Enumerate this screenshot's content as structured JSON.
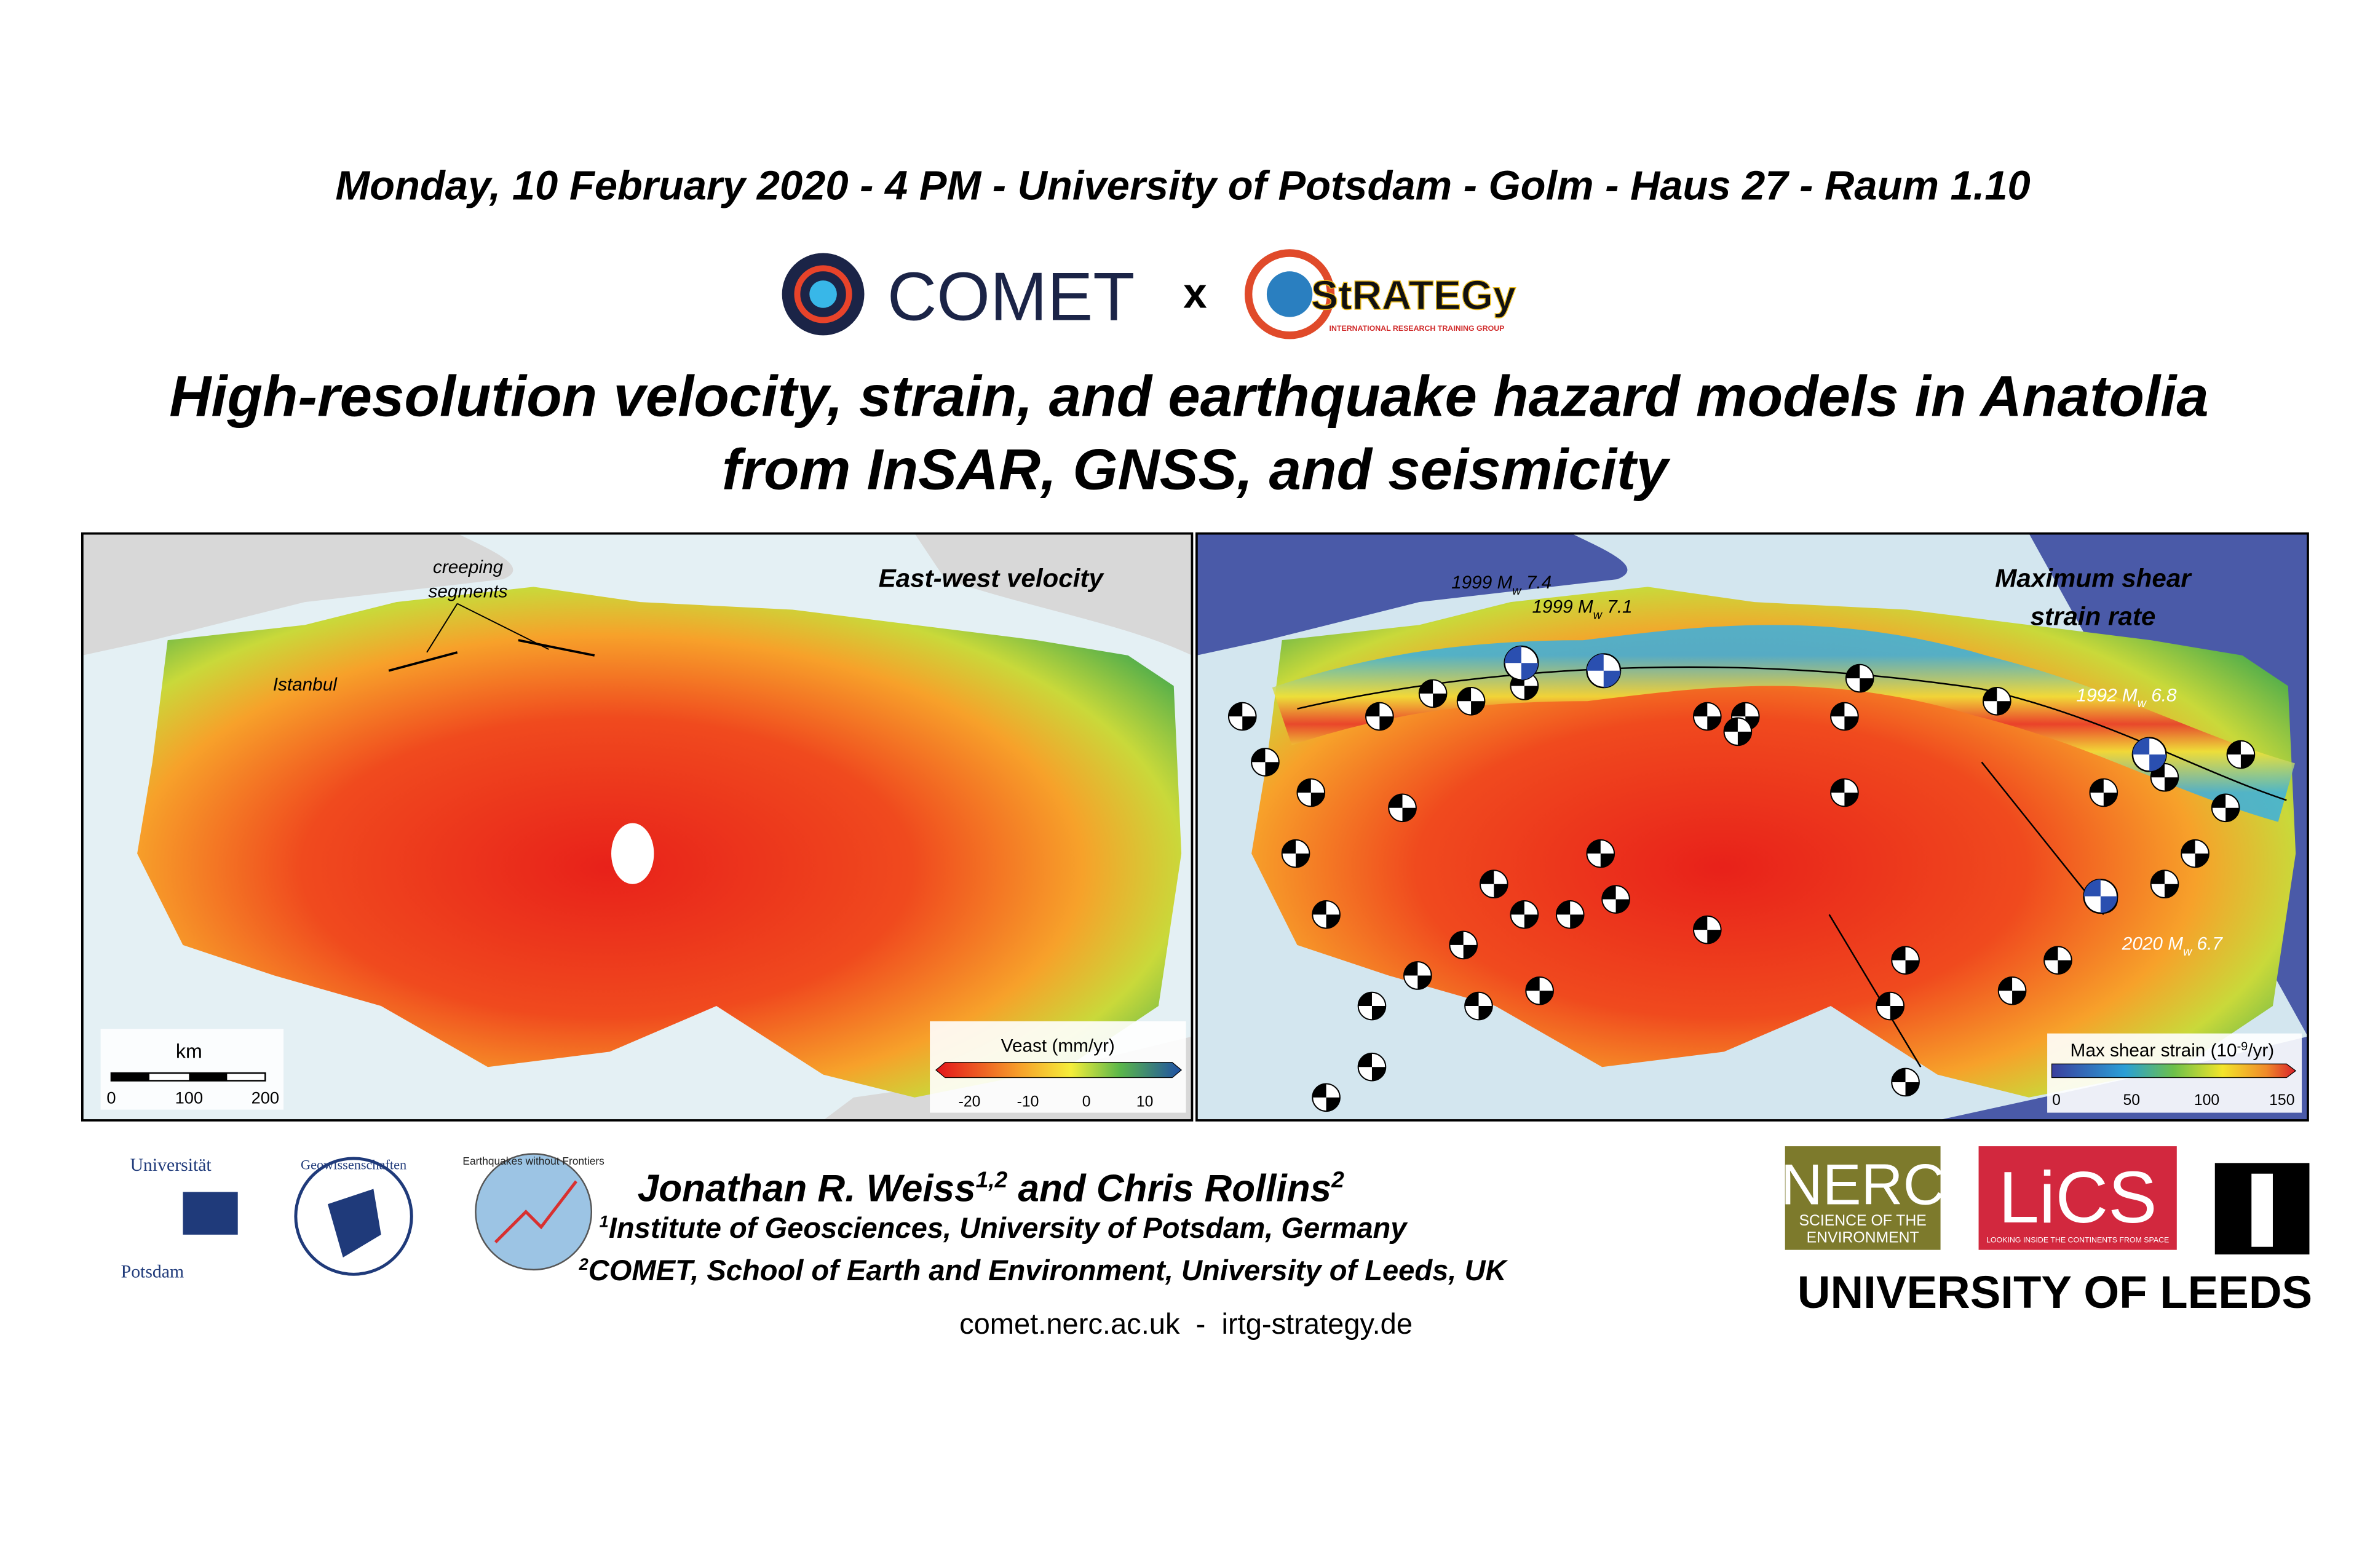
{
  "header": {
    "date_line": "Monday, 10 February 2020 - 4 PM - University of Potsdam - Golm - Haus 27 - Raum 1.10"
  },
  "logos_top": {
    "comet": "COMET",
    "separator": "x",
    "strategy": "StRATEGy",
    "strategy_tagline": "INTERNATIONAL RESEARCH TRAINING GROUP"
  },
  "title": {
    "lines": [
      "High-resolution velocity, strain, and earthquake hazard models in Anatolia",
      "from InSAR, GNSS, and seismicity"
    ]
  },
  "map_left": {
    "title": "East-west velocity",
    "annotation": [
      "creeping",
      "segments"
    ],
    "city": "Istanbul",
    "scale_bar": {
      "unit": "km",
      "ticks": [
        "0",
        "100",
        "200"
      ]
    },
    "colorbar": {
      "title": "Veast (mm/yr)",
      "ticks": [
        "-20",
        "-10",
        "0",
        "10"
      ]
    }
  },
  "map_right": {
    "title": [
      "Maximum shear",
      "strain rate"
    ],
    "events": [
      {
        "year": "1999 M",
        "sub": "w",
        "mag": " 7.4"
      },
      {
        "year": "1999 M",
        "sub": "w",
        "mag": " 7.1"
      },
      {
        "year": "1992 M",
        "sub": "w",
        "mag": " 6.8"
      },
      {
        "year": "2020 M",
        "sub": "w",
        "mag": " 6.7"
      }
    ],
    "colorbar": {
      "title": "Max shear strain (10",
      "title_sup": "-9",
      "title_end": "/yr)",
      "ticks": [
        "0",
        "50",
        "100",
        "150"
      ]
    }
  },
  "authors": {
    "names": [
      {
        "name": "Jonathan R. Weiss",
        "mark": "1,2"
      },
      {
        "name": " and Chris Rollins",
        "mark": "2"
      }
    ],
    "affiliations": [
      {
        "mark": "1",
        "text": "Institute of Geosciences, University of Potsdam, Germany"
      },
      {
        "mark": "2",
        "text": "COMET, School of Earth and Environment, University of Leeds, UK"
      }
    ],
    "website": "comet.nerc.ac.uk  -  irtg-strategy.de"
  },
  "logos_bottom": {
    "potsdam": [
      "Universität",
      "Potsdam"
    ],
    "geo": "Geowissenschaften",
    "ewf": "Earthquakes without Frontiers",
    "nerc": "NERC",
    "nerc_tagline": [
      "SCIENCE OF THE",
      "ENVIRONMENT"
    ],
    "lics": "LiCS",
    "lics_tagline": "LOOKING INSIDE THE CONTINENTS FROM SPACE",
    "leeds": "UNIVERSITY OF LEEDS"
  }
}
